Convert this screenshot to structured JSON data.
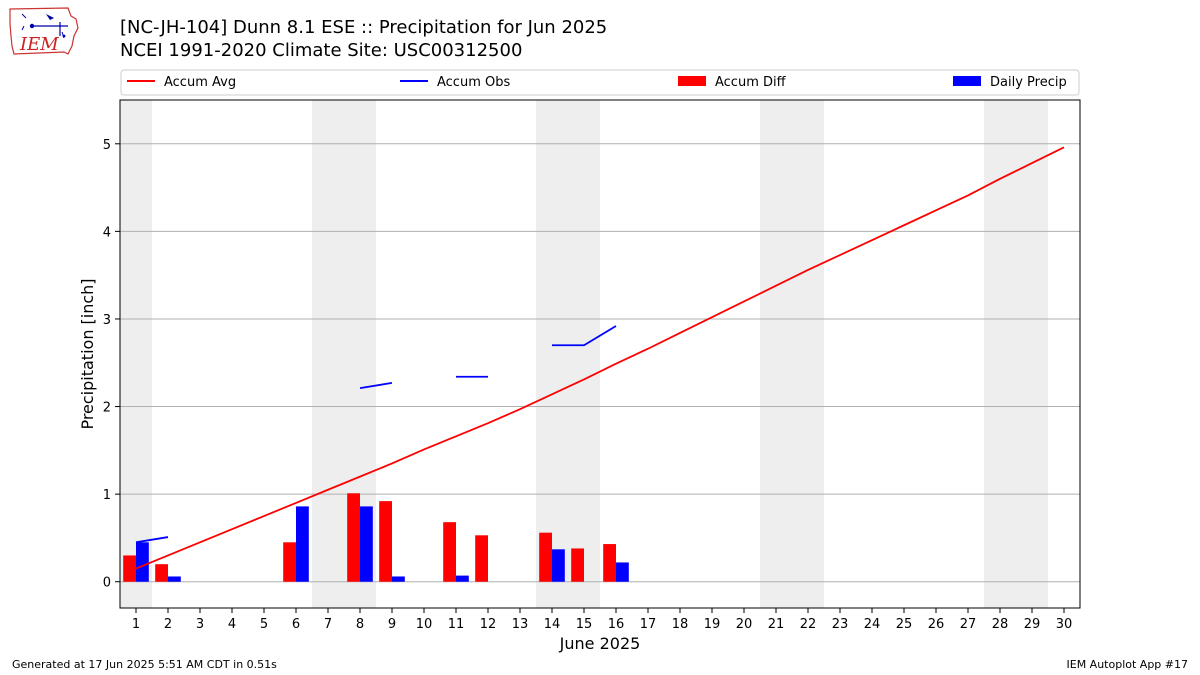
{
  "logo": {
    "text": "IEM"
  },
  "chart_data": {
    "type": "bar",
    "title": "[NC-JH-104] Dunn 8.1 ESE :: Precipitation for Jun 2025",
    "subtitle": "NCEI 1991-2020 Climate Site: USC00312500",
    "xlabel": "June 2025",
    "ylabel": "Precipitation [inch]",
    "ylim": [
      -0.3,
      5.5
    ],
    "yticks": [
      0,
      1,
      2,
      3,
      4,
      5
    ],
    "grid": "horizontal",
    "legend_position": "top",
    "legend": [
      {
        "label": "Accum Avg",
        "kind": "line",
        "color": "#ff0000"
      },
      {
        "label": "Accum Obs",
        "kind": "line",
        "color": "#0000ff"
      },
      {
        "label": "Accum Diff",
        "kind": "bar",
        "color": "#ff0000"
      },
      {
        "label": "Daily Precip",
        "kind": "bar",
        "color": "#0000ff"
      }
    ],
    "x": [
      1,
      2,
      3,
      4,
      5,
      6,
      7,
      8,
      9,
      10,
      11,
      12,
      13,
      14,
      15,
      16,
      17,
      18,
      19,
      20,
      21,
      22,
      23,
      24,
      25,
      26,
      27,
      28,
      29,
      30
    ],
    "weekend_days": [
      1,
      7,
      8,
      14,
      15,
      21,
      22,
      28,
      29
    ],
    "series": [
      {
        "name": "Accum Avg",
        "kind": "line",
        "color": "#ff0000",
        "values": [
          0.15,
          0.3,
          0.45,
          0.6,
          0.75,
          0.9,
          1.05,
          1.2,
          1.35,
          1.51,
          1.66,
          1.81,
          1.97,
          2.14,
          2.31,
          2.49,
          2.66,
          2.84,
          3.02,
          3.2,
          3.38,
          3.56,
          3.73,
          3.9,
          4.07,
          4.24,
          4.41,
          4.6,
          4.78,
          4.96
        ]
      },
      {
        "name": "Accum Obs",
        "kind": "line",
        "color": "#0000ff",
        "values": [
          0.45,
          0.51,
          null,
          null,
          null,
          null,
          null,
          2.21,
          2.27,
          null,
          2.34,
          2.34,
          null,
          2.7,
          2.7,
          2.92,
          null,
          null,
          null,
          null,
          null,
          null,
          null,
          null,
          null,
          null,
          null,
          null,
          null,
          null
        ]
      },
      {
        "name": "Accum Diff",
        "kind": "bar",
        "color": "#ff0000",
        "values": [
          0.3,
          0.2,
          null,
          null,
          null,
          0.45,
          null,
          1.01,
          0.92,
          null,
          0.68,
          0.53,
          null,
          0.56,
          0.38,
          0.43,
          null,
          null,
          null,
          null,
          null,
          null,
          null,
          null,
          null,
          null,
          null,
          null,
          null,
          null
        ]
      },
      {
        "name": "Daily Precip",
        "kind": "bar",
        "color": "#0000ff",
        "values": [
          0.45,
          0.06,
          null,
          null,
          null,
          0.86,
          null,
          0.86,
          0.06,
          null,
          0.07,
          null,
          null,
          0.37,
          null,
          0.22,
          null,
          null,
          null,
          null,
          null,
          null,
          null,
          null,
          null,
          null,
          null,
          null,
          null,
          null
        ]
      }
    ]
  },
  "footer": {
    "generated": "Generated at 17 Jun 2025 5:51 AM CDT in 0.51s",
    "app": "IEM Autoplot App #17"
  }
}
